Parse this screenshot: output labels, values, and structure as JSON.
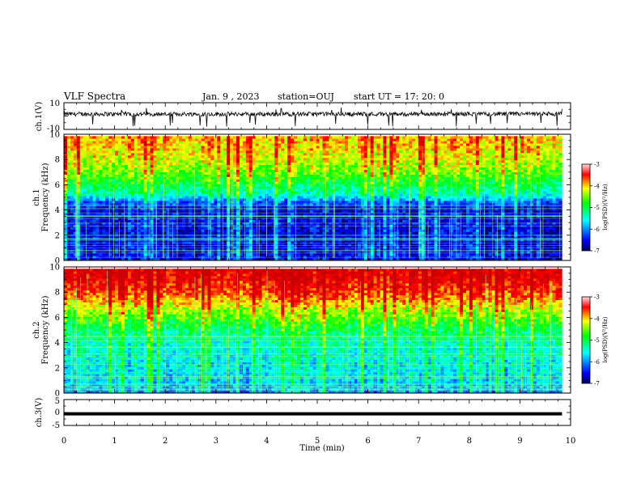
{
  "header": {
    "title": "VLF Spectra",
    "date": "Jan. 9 , 2023",
    "station": "station=OUJ",
    "start": "start UT =  17: 20: 0"
  },
  "chart_data": [
    {
      "type": "line",
      "panel": "ch1-waveform",
      "ylabel": "ch.1(V)",
      "ylim": [
        -10,
        10
      ],
      "yticks": [
        "10",
        "-10"
      ],
      "trace_color": "#000000",
      "baseline": 1.5,
      "spike_min": -8
    },
    {
      "type": "heatmap",
      "panel": "ch1-spectrogram",
      "ylabel_line1": "ch.1",
      "ylabel_line2": "Frequency (kHz)",
      "ylim": [
        0,
        10
      ],
      "yticks": [
        "0",
        "2",
        "4",
        "6",
        "8",
        "10"
      ],
      "colorbar": {
        "label": "log(PSD)(V²/Hz)",
        "range": [
          -7,
          -3
        ],
        "ticks": [
          "-3",
          "-4",
          "-5",
          "-6",
          "-7"
        ]
      },
      "profile_freq_khz": [
        0,
        1,
        2,
        3,
        4,
        4.6,
        5.2,
        6,
        7,
        8,
        9,
        9.8
      ],
      "profile_log_psd": [
        -6.5,
        -6.5,
        -6.6,
        -6.5,
        -6.6,
        -6.2,
        -5.4,
        -5.0,
        -4.5,
        -4.2,
        -4.0,
        -3.9
      ]
    },
    {
      "type": "heatmap",
      "panel": "ch2-spectrogram",
      "ylabel_line1": "ch.2",
      "ylabel_line2": "Frequency (kHz)",
      "ylim": [
        0,
        10
      ],
      "yticks": [
        "0",
        "2",
        "4",
        "6",
        "8",
        "10"
      ],
      "colorbar": {
        "label": "log(PSD)(V²/Hz)",
        "range": [
          -7,
          -3
        ],
        "ticks": [
          "-3",
          "-4",
          "-5",
          "-6",
          "-7"
        ]
      },
      "profile_freq_khz": [
        0,
        1,
        2,
        3,
        4,
        5,
        6,
        7,
        8,
        9,
        9.8
      ],
      "profile_log_psd": [
        -6.0,
        -5.7,
        -5.6,
        -5.5,
        -5.4,
        -5.1,
        -4.6,
        -4.1,
        -3.6,
        -3.3,
        -3.2
      ]
    },
    {
      "type": "line",
      "panel": "ch3-waveform",
      "ylabel": "ch.3(V)",
      "ylim": [
        -5,
        5
      ],
      "yticks": [
        "5",
        "0",
        "-5"
      ],
      "trace_color": "#000000",
      "baseline": -0.5
    }
  ],
  "x_axis": {
    "label": "Time (min)",
    "range": [
      0,
      10
    ],
    "data_end": 9.83,
    "ticks": [
      "0",
      "1",
      "2",
      "3",
      "4",
      "5",
      "6",
      "7",
      "8",
      "9",
      "10"
    ]
  },
  "colors": {
    "scale": [
      "#00008b",
      "#0000ff",
      "#00ffff",
      "#00ff00",
      "#ffff00",
      "#ff0000",
      "#c80000"
    ]
  }
}
